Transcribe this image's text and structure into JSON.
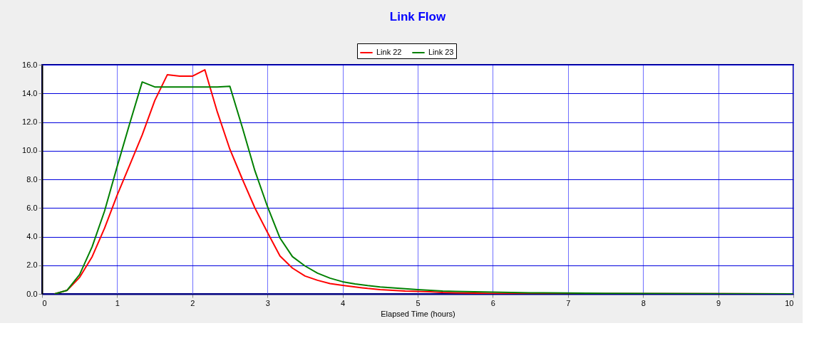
{
  "chart_data": {
    "type": "line",
    "title": "Link Flow",
    "xlabel": "Elapsed Time (hours)",
    "xlim": [
      0,
      10
    ],
    "xticks": [
      0,
      1,
      2,
      3,
      4,
      5,
      6,
      7,
      8,
      9,
      10
    ],
    "ylim": [
      0,
      16
    ],
    "yticks": [
      {
        "value": 0,
        "label": "0.0"
      },
      {
        "value": 2,
        "label": "2.0"
      },
      {
        "value": 4,
        "label": "4.0"
      },
      {
        "value": 6,
        "label": "6.0"
      },
      {
        "value": 8,
        "label": "8.0"
      },
      {
        "value": 10,
        "label": "10.0"
      },
      {
        "value": 12,
        "label": "12.0"
      },
      {
        "value": 14,
        "label": "14.0"
      },
      {
        "value": 16,
        "label": "16.0"
      }
    ],
    "grid": true,
    "legend": "top",
    "marker": "none",
    "line_style": "solid",
    "series": [
      {
        "name": "Link 22",
        "color": "#ff0000",
        "x": [
          0.167,
          0.333,
          0.5,
          0.667,
          0.833,
          1,
          1.167,
          1.333,
          1.5,
          1.667,
          1.833,
          2,
          2.167,
          2.333,
          2.5,
          2.667,
          2.833,
          3,
          3.167,
          3.333,
          3.5,
          3.667,
          3.833,
          4,
          4.167,
          4.333,
          4.5,
          4.667,
          4.833,
          5,
          5.167,
          5.333,
          5.5,
          6,
          10
        ],
        "values": [
          0,
          0.25,
          1.15,
          2.6,
          4.6,
          6.9,
          9.0,
          11.1,
          13.5,
          15.3,
          15.2,
          15.2,
          15.65,
          12.7,
          10.1,
          8.0,
          6.0,
          4.3,
          2.65,
          1.8,
          1.25,
          0.95,
          0.72,
          0.6,
          0.48,
          0.38,
          0.3,
          0.25,
          0.2,
          0.18,
          0.15,
          0.1,
          0.08,
          0.03,
          0
        ]
      },
      {
        "name": "Link 23",
        "color": "#008000",
        "x": [
          0.167,
          0.333,
          0.5,
          0.667,
          0.833,
          1,
          1.167,
          1.333,
          1.5,
          1.667,
          1.833,
          2,
          2.167,
          2.333,
          2.5,
          2.667,
          2.833,
          3,
          3.167,
          3.333,
          3.5,
          3.667,
          3.833,
          4,
          4.167,
          4.333,
          4.5,
          4.667,
          4.833,
          5,
          5.167,
          5.333,
          5.5,
          6,
          6.5,
          7,
          7.5,
          10
        ],
        "values": [
          0,
          0.25,
          1.35,
          3.3,
          5.8,
          8.9,
          11.9,
          14.8,
          14.45,
          14.45,
          14.45,
          14.45,
          14.45,
          14.45,
          14.5,
          11.6,
          8.6,
          6.1,
          3.9,
          2.6,
          1.95,
          1.45,
          1.1,
          0.85,
          0.7,
          0.58,
          0.48,
          0.42,
          0.36,
          0.3,
          0.25,
          0.2,
          0.18,
          0.12,
          0.08,
          0.06,
          0.04,
          0
        ]
      }
    ]
  }
}
